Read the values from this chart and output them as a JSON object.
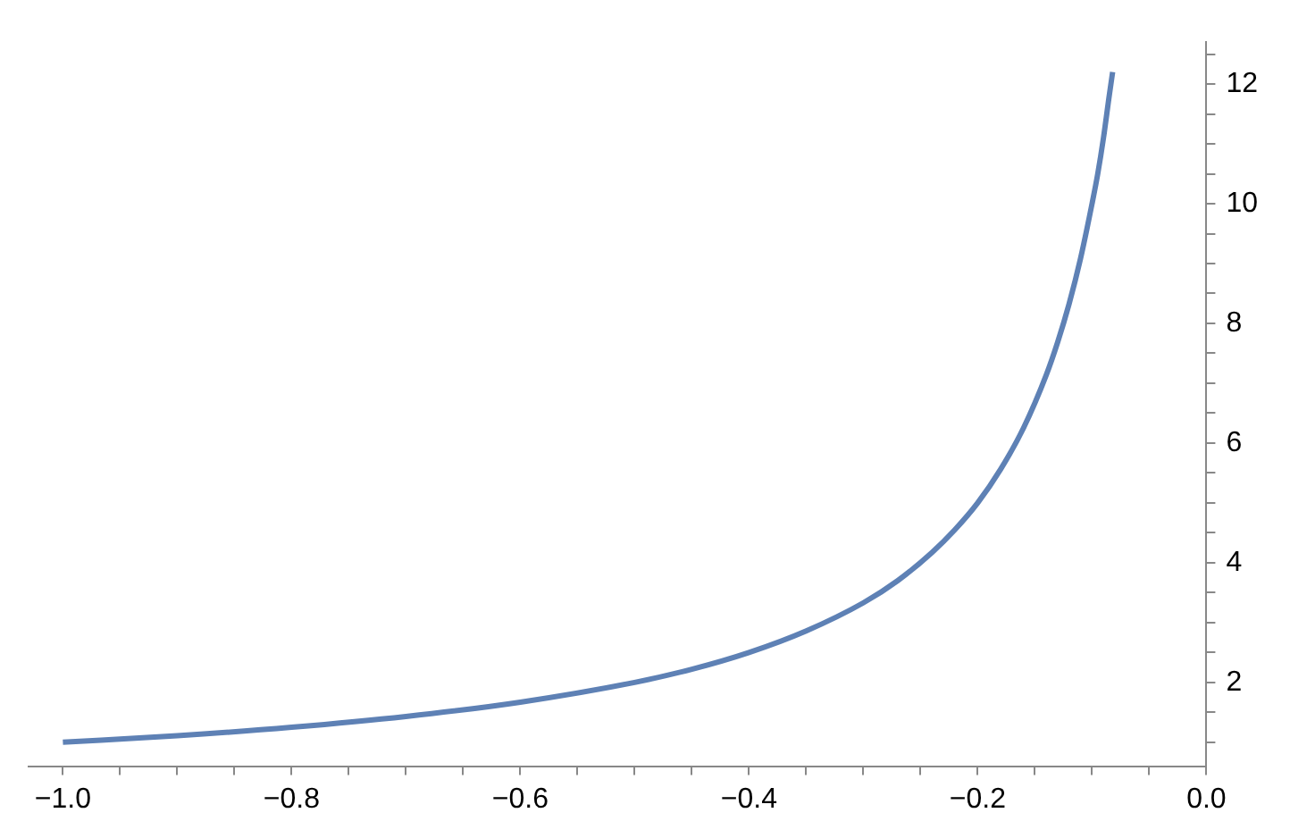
{
  "chart_data": {
    "type": "line",
    "x": [
      -1,
      -0.9,
      -0.8,
      -0.7,
      -0.6,
      -0.5,
      -0.45,
      -0.4,
      -0.35,
      -0.3,
      -0.27,
      -0.24,
      -0.22,
      -0.2,
      -0.18,
      -0.16,
      -0.14,
      -0.13,
      -0.12,
      -0.11,
      -0.1,
      -0.095,
      -0.09,
      -0.085,
      -0.082
    ],
    "series": [
      {
        "color": "#5e81b5",
        "values": [
          1.0,
          1.11,
          1.25,
          1.43,
          1.67,
          2.0,
          2.22,
          2.5,
          2.86,
          3.33,
          3.7,
          4.17,
          4.55,
          5.0,
          5.56,
          6.25,
          7.14,
          7.69,
          8.33,
          9.09,
          10.0,
          10.5,
          11.1,
          11.8,
          12.2
        ]
      }
    ],
    "xlim": [
      -1.03,
      0
    ],
    "xticks": [
      {
        "value": -1,
        "label": "−1.0"
      },
      {
        "value": -0.95,
        "label": null
      },
      {
        "value": -0.9,
        "label": null
      },
      {
        "value": -0.85,
        "label": null
      },
      {
        "value": -0.8,
        "label": "−0.8"
      },
      {
        "value": -0.75,
        "label": null
      },
      {
        "value": -0.7,
        "label": null
      },
      {
        "value": -0.65,
        "label": null
      },
      {
        "value": -0.6,
        "label": "−0.6"
      },
      {
        "value": -0.55,
        "label": null
      },
      {
        "value": -0.5,
        "label": null
      },
      {
        "value": -0.45,
        "label": null
      },
      {
        "value": -0.4,
        "label": "−0.4"
      },
      {
        "value": -0.35,
        "label": null
      },
      {
        "value": -0.3,
        "label": null
      },
      {
        "value": -0.25,
        "label": null
      },
      {
        "value": -0.2,
        "label": "−0.2"
      },
      {
        "value": -0.15,
        "label": null
      },
      {
        "value": -0.1,
        "label": null
      },
      {
        "value": -0.05,
        "label": null
      },
      {
        "value": 0,
        "label": "0.0"
      }
    ],
    "ylim": [
      0.6,
      12.7
    ],
    "yticks": [
      {
        "value": 1,
        "label": null
      },
      {
        "value": 1.5,
        "label": null
      },
      2,
      {
        "value": 2.5,
        "label": null
      },
      {
        "value": 3,
        "label": null
      },
      {
        "value": 3.5,
        "label": null
      },
      4,
      {
        "value": 4.5,
        "label": null
      },
      {
        "value": 5,
        "label": null
      },
      {
        "value": 5.5,
        "label": null
      },
      6,
      {
        "value": 6.5,
        "label": null
      },
      {
        "value": 7,
        "label": null
      },
      {
        "value": 7.5,
        "label": null
      },
      8,
      {
        "value": 8.5,
        "label": null
      },
      {
        "value": 9,
        "label": null
      },
      {
        "value": 9.5,
        "label": null
      },
      10,
      {
        "value": 10.5,
        "label": null
      },
      {
        "value": 11,
        "label": null
      },
      {
        "value": 11.5,
        "label": null
      },
      12,
      {
        "value": 12.5,
        "label": null
      }
    ],
    "grid": false,
    "legend": false,
    "marker": "none",
    "line_style": "solid"
  }
}
